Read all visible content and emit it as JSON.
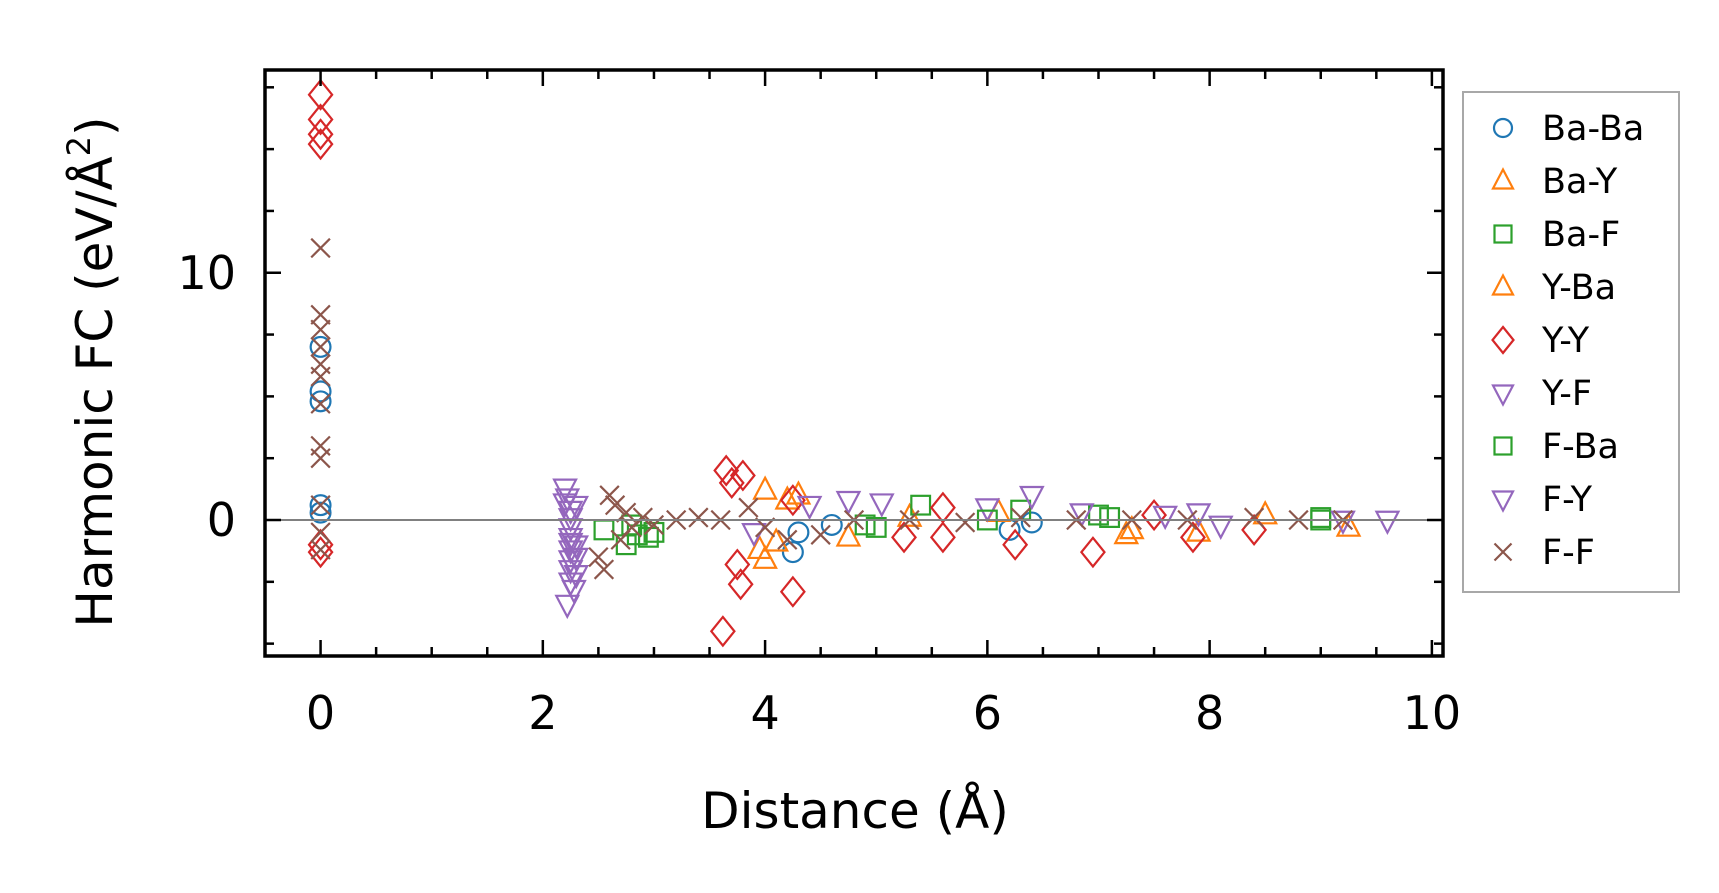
{
  "chart_data": {
    "type": "scatter",
    "xlabel": "Distance (Å)",
    "ylabel_main": "Harmonic FC (eV/Å",
    "ylabel_sup": "2",
    "ylabel_close": ")",
    "xlim": [
      -0.5,
      10.1
    ],
    "ylim": [
      -5.5,
      18.2
    ],
    "xticks": [
      0,
      2,
      4,
      6,
      8,
      10
    ],
    "xtick_labels": [
      "0",
      "2",
      "4",
      "6",
      "8",
      "10"
    ],
    "yticks": [
      0,
      10
    ],
    "ytick_labels": [
      "0",
      "10"
    ],
    "zero_line": 0,
    "legend_position": "outside-right",
    "series": [
      {
        "name": "Ba-Ba",
        "marker": "circle",
        "color": "#1f77b4",
        "points": [
          [
            0,
            7.0
          ],
          [
            0,
            5.2
          ],
          [
            0,
            4.8
          ],
          [
            0,
            0.6
          ],
          [
            0,
            0.3
          ],
          [
            4.25,
            -1.3
          ],
          [
            4.3,
            -0.5
          ],
          [
            4.6,
            -0.2
          ],
          [
            6.2,
            -0.4
          ],
          [
            6.4,
            -0.1
          ]
        ]
      },
      {
        "name": "Ba-Y",
        "marker": "triangle-up",
        "color": "#ff7f0e",
        "points": [
          [
            4.0,
            1.2
          ],
          [
            4.0,
            -1.6
          ],
          [
            4.2,
            0.8
          ],
          [
            4.75,
            -0.7
          ],
          [
            5.3,
            0.1
          ],
          [
            7.25,
            -0.6
          ],
          [
            7.9,
            -0.5
          ],
          [
            9.25,
            -0.3
          ]
        ]
      },
      {
        "name": "Ba-F",
        "marker": "square",
        "color": "#2ca02c",
        "points": [
          [
            2.75,
            -1.0
          ],
          [
            2.85,
            -0.6
          ],
          [
            2.95,
            -0.7
          ],
          [
            5.0,
            -0.3
          ],
          [
            5.4,
            0.6
          ],
          [
            6.3,
            0.4
          ],
          [
            7.0,
            0.2
          ],
          [
            9.0,
            0.1
          ]
        ]
      },
      {
        "name": "Y-Ba",
        "marker": "triangle-up",
        "color": "#ff7f0e",
        "points": [
          [
            3.95,
            -1.2
          ],
          [
            4.1,
            -0.9
          ],
          [
            4.3,
            1.0
          ],
          [
            6.1,
            0.3
          ],
          [
            7.3,
            -0.4
          ],
          [
            8.5,
            0.2
          ]
        ]
      },
      {
        "name": "Y-Y",
        "marker": "diamond",
        "color": "#d62728",
        "points": [
          [
            0,
            17.2
          ],
          [
            0,
            16.2
          ],
          [
            0,
            15.6
          ],
          [
            0,
            15.2
          ],
          [
            0,
            -1.0
          ],
          [
            0,
            -1.3
          ],
          [
            3.65,
            2.0
          ],
          [
            3.7,
            1.5
          ],
          [
            3.8,
            1.8
          ],
          [
            3.75,
            -1.8
          ],
          [
            3.78,
            -2.6
          ],
          [
            3.62,
            -4.5
          ],
          [
            4.25,
            -2.9
          ],
          [
            4.25,
            0.8
          ],
          [
            5.25,
            -0.7
          ],
          [
            5.6,
            0.5
          ],
          [
            5.6,
            -0.7
          ],
          [
            6.25,
            -1.0
          ],
          [
            6.95,
            -1.3
          ],
          [
            7.5,
            0.2
          ],
          [
            7.85,
            -0.7
          ],
          [
            8.4,
            -0.4
          ]
        ]
      },
      {
        "name": "Y-F",
        "marker": "triangle-down",
        "color": "#9467bd",
        "points": [
          [
            2.2,
            1.3
          ],
          [
            2.22,
            0.9
          ],
          [
            2.25,
            0.4
          ],
          [
            2.25,
            0.1
          ],
          [
            2.25,
            -0.3
          ],
          [
            2.25,
            -0.7
          ],
          [
            2.25,
            -1.2
          ],
          [
            2.25,
            -1.6
          ],
          [
            2.25,
            -2.0
          ],
          [
            2.25,
            -2.5
          ],
          [
            2.22,
            -3.4
          ],
          [
            2.3,
            -2.2
          ],
          [
            2.3,
            -1.0
          ],
          [
            2.3,
            0.6
          ],
          [
            4.75,
            0.8
          ],
          [
            5.05,
            0.7
          ],
          [
            6.0,
            0.5
          ],
          [
            6.85,
            0.3
          ],
          [
            7.6,
            0.2
          ],
          [
            9.6,
            0.0
          ]
        ]
      },
      {
        "name": "F-Ba",
        "marker": "square",
        "color": "#2ca02c",
        "points": [
          [
            2.55,
            -0.4
          ],
          [
            2.8,
            -0.2
          ],
          [
            3.0,
            -0.5
          ],
          [
            4.9,
            -0.2
          ],
          [
            6.0,
            0.0
          ],
          [
            7.1,
            0.1
          ],
          [
            9.0,
            0.0
          ]
        ]
      },
      {
        "name": "F-Y",
        "marker": "triangle-down",
        "color": "#9467bd",
        "points": [
          [
            2.2,
            0.7
          ],
          [
            2.25,
            -0.9
          ],
          [
            2.3,
            -1.5
          ],
          [
            2.28,
            -2.8
          ],
          [
            3.9,
            -0.5
          ],
          [
            4.4,
            0.6
          ],
          [
            6.4,
            1.0
          ],
          [
            7.9,
            0.3
          ],
          [
            8.1,
            -0.2
          ],
          [
            9.2,
            0.0
          ]
        ]
      },
      {
        "name": "F-F",
        "marker": "x",
        "color": "#8c564b",
        "points": [
          [
            0,
            11.0
          ],
          [
            0,
            8.3
          ],
          [
            0,
            7.7
          ],
          [
            0,
            7.0
          ],
          [
            0,
            6.3
          ],
          [
            0,
            5.8
          ],
          [
            0,
            4.7
          ],
          [
            0,
            3.0
          ],
          [
            0,
            2.5
          ],
          [
            0,
            0.6
          ],
          [
            0,
            -0.5
          ],
          [
            0,
            -1.2
          ],
          [
            2.5,
            -1.5
          ],
          [
            2.55,
            -2.0
          ],
          [
            2.6,
            1.0
          ],
          [
            2.65,
            0.6
          ],
          [
            2.7,
            -0.8
          ],
          [
            2.75,
            0.3
          ],
          [
            2.8,
            -0.3
          ],
          [
            2.9,
            0.1
          ],
          [
            3.0,
            -0.2
          ],
          [
            3.2,
            0.0
          ],
          [
            3.4,
            0.1
          ],
          [
            3.6,
            0.0
          ],
          [
            3.85,
            0.5
          ],
          [
            4.0,
            -0.3
          ],
          [
            4.2,
            -0.8
          ],
          [
            4.5,
            -0.6
          ],
          [
            4.8,
            0.0
          ],
          [
            5.3,
            0.0
          ],
          [
            5.8,
            -0.1
          ],
          [
            6.3,
            0.1
          ],
          [
            6.8,
            0.0
          ],
          [
            7.3,
            0.0
          ],
          [
            7.8,
            0.0
          ],
          [
            8.4,
            0.1
          ],
          [
            8.8,
            0.0
          ],
          [
            9.2,
            0.0
          ]
        ]
      }
    ]
  }
}
